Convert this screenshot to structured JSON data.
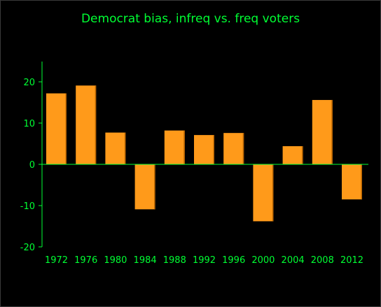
{
  "chart_data": {
    "type": "bar",
    "title": "Democrat bias, infreq vs. freq voters",
    "xlabel": "",
    "ylabel": "",
    "categories": [
      "1972",
      "1976",
      "1980",
      "1984",
      "1988",
      "1992",
      "1996",
      "2000",
      "2004",
      "2008",
      "2012"
    ],
    "values": [
      17.2,
      19.1,
      7.7,
      -10.9,
      8.2,
      7.1,
      7.6,
      -13.8,
      4.4,
      15.6,
      -8.5
    ],
    "ylim": [
      -20,
      25
    ],
    "yticks": [
      -20,
      -10,
      0,
      10,
      20
    ],
    "grid": false,
    "colors": {
      "bar": "#ff9a1a",
      "bar_edge": "#b86400",
      "axis": "#00ff33",
      "text": "#00ff33",
      "background": "#000000"
    }
  }
}
